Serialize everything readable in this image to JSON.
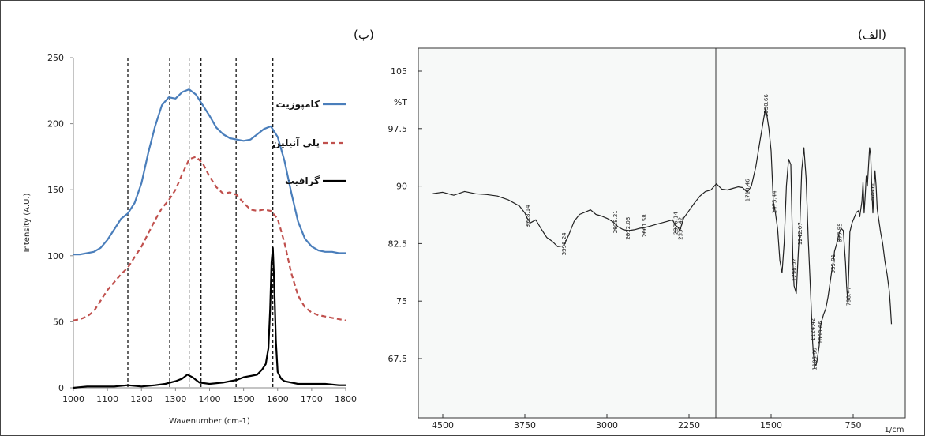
{
  "labels": {
    "panel_b": "(ب)",
    "panel_a": "(الف)"
  },
  "colors": {
    "composite": "#4a7ebb",
    "polyaniline": "#c0504d",
    "graphite": "#000000",
    "vlines": "#000000",
    "ftir": "#222222"
  },
  "chart_data": [
    {
      "id": "raman",
      "type": "line",
      "title": "",
      "xlabel": "Wavenumber (cm-1)",
      "ylabel": "Intensity (A.U.)",
      "xlim": [
        1000,
        1800
      ],
      "ylim": [
        0,
        250
      ],
      "xticks": [
        1000,
        1100,
        1200,
        1300,
        1400,
        1500,
        1600,
        1700,
        1800
      ],
      "yticks": [
        0,
        50,
        100,
        150,
        200,
        250
      ],
      "grid": false,
      "legend_position": "top-right",
      "reference_lines_x": [
        1160,
        1283,
        1340,
        1375,
        1478,
        1586
      ],
      "series": [
        {
          "name": "کامپوزیت",
          "style": "solid",
          "color": "#4a7ebb",
          "x": [
            1000,
            1020,
            1040,
            1060,
            1080,
            1100,
            1120,
            1140,
            1160,
            1180,
            1200,
            1220,
            1240,
            1260,
            1280,
            1300,
            1320,
            1340,
            1360,
            1380,
            1400,
            1420,
            1440,
            1460,
            1480,
            1500,
            1520,
            1540,
            1560,
            1580,
            1600,
            1620,
            1640,
            1660,
            1680,
            1700,
            1720,
            1740,
            1760,
            1780,
            1800
          ],
          "y": [
            101,
            101,
            102,
            103,
            106,
            112,
            120,
            128,
            132,
            140,
            155,
            178,
            198,
            214,
            220,
            219,
            224,
            226,
            222,
            214,
            206,
            197,
            192,
            189,
            188,
            187,
            188,
            192,
            196,
            198,
            190,
            172,
            148,
            126,
            113,
            107,
            104,
            103,
            103,
            102,
            102
          ]
        },
        {
          "name": "پلی آنیلین",
          "style": "dashed",
          "color": "#c0504d",
          "x": [
            1000,
            1020,
            1040,
            1060,
            1080,
            1100,
            1120,
            1140,
            1160,
            1180,
            1200,
            1220,
            1240,
            1260,
            1280,
            1300,
            1320,
            1340,
            1360,
            1380,
            1400,
            1420,
            1440,
            1460,
            1480,
            1500,
            1520,
            1540,
            1560,
            1580,
            1600,
            1620,
            1640,
            1660,
            1680,
            1700,
            1720,
            1740,
            1760,
            1780,
            1800
          ],
          "y": [
            51,
            52,
            54,
            58,
            66,
            74,
            80,
            86,
            91,
            99,
            107,
            117,
            127,
            136,
            142,
            150,
            162,
            173,
            175,
            170,
            160,
            152,
            147,
            148,
            146,
            140,
            135,
            134,
            135,
            134,
            128,
            110,
            87,
            70,
            61,
            57,
            55,
            54,
            53,
            52,
            51
          ]
        },
        {
          "name": "گرافیت",
          "style": "solid",
          "color": "#000000",
          "x": [
            1000,
            1040,
            1080,
            1120,
            1160,
            1200,
            1240,
            1270,
            1300,
            1320,
            1335,
            1350,
            1370,
            1400,
            1440,
            1480,
            1500,
            1520,
            1540,
            1555,
            1565,
            1573,
            1578,
            1582,
            1586,
            1590,
            1595,
            1600,
            1610,
            1620,
            1640,
            1660,
            1700,
            1740,
            1780,
            1800
          ],
          "y": [
            0,
            1,
            1,
            1,
            2,
            1,
            2,
            3,
            5,
            7,
            10,
            8,
            4,
            3,
            4,
            6,
            8,
            9,
            10,
            14,
            18,
            30,
            60,
            95,
            106,
            80,
            35,
            12,
            7,
            5,
            4,
            3,
            3,
            3,
            2,
            2
          ]
        }
      ]
    },
    {
      "id": "ftir",
      "type": "line",
      "title": "",
      "xlabel": "1/cm",
      "ylabel": "%T",
      "xlim": [
        4600,
        400
      ],
      "ylim": [
        62,
        107
      ],
      "xticks": [
        4500,
        3750,
        3000,
        2250,
        1500,
        750
      ],
      "yticks": [
        105,
        97.5,
        90,
        82.5,
        75,
        67.5
      ],
      "grid": false,
      "annotations": [
        {
          "x": 3728.14,
          "label": "3728.14"
        },
        {
          "x": 3396.24,
          "label": "3396.24"
        },
        {
          "x": 2928.21,
          "label": "2928.21"
        },
        {
          "x": 2812.03,
          "label": "2812.03"
        },
        {
          "x": 2661.58,
          "label": "2661.58"
        },
        {
          "x": 2376.14,
          "label": "2376.14"
        },
        {
          "x": 2334.42,
          "label": "2334.42"
        },
        {
          "x": 1718.46,
          "label": "1718.46"
        },
        {
          "x": 1550.66,
          "label": "1550.66"
        },
        {
          "x": 1475.44,
          "label": "1475.44"
        },
        {
          "x": 1296.02,
          "label": "1296.02"
        },
        {
          "x": 1242.07,
          "label": "1242.07"
        },
        {
          "x": 1124.42,
          "label": "1124.42"
        },
        {
          "x": 1105.99,
          "label": "1105.99"
        },
        {
          "x": 1053.66,
          "label": "1053.66"
        },
        {
          "x": 935.91,
          "label": "935.91"
        },
        {
          "x": 877.55,
          "label": "877.55"
        },
        {
          "x": 798.47,
          "label": "798.47"
        },
        {
          "x": 578.6,
          "label": "578.60"
        }
      ],
      "series": [
        {
          "name": "",
          "x": [
            4600,
            4500,
            4400,
            4300,
            4200,
            4100,
            4000,
            3900,
            3800,
            3750,
            3728,
            3700,
            3650,
            3600,
            3550,
            3500,
            3450,
            3396,
            3350,
            3300,
            3250,
            3200,
            3150,
            3100,
            3050,
            3000,
            2950,
            2900,
            2850,
            2800,
            2750,
            2700,
            2650,
            2600,
            2550,
            2500,
            2450,
            2400,
            2376,
            2350,
            2334,
            2300,
            2250,
            2200,
            2150,
            2100,
            2050,
            2000,
            1950,
            1900,
            1850,
            1800,
            1760,
            1718,
            1680,
            1640,
            1600,
            1570,
            1550,
            1520,
            1500,
            1480,
            1460,
            1440,
            1420,
            1400,
            1380,
            1360,
            1340,
            1320,
            1300,
            1290,
            1270,
            1250,
            1240,
            1220,
            1200,
            1180,
            1160,
            1140,
            1130,
            1120,
            1110,
            1100,
            1090,
            1080,
            1060,
            1050,
            1040,
            1020,
            1000,
            980,
            960,
            940,
            930,
            920,
            900,
            880,
            860,
            840,
            820,
            810,
            800,
            790,
            780,
            760,
            740,
            720,
            700,
            690,
            680,
            670,
            660,
            650,
            640,
            630,
            620,
            610,
            600,
            590,
            580,
            570,
            560,
            550,
            540,
            530,
            520,
            500,
            480,
            460,
            440,
            420,
            410,
            400
          ],
          "y": [
            89,
            89.2,
            88.8,
            89.3,
            89,
            88.9,
            88.7,
            88.2,
            87.4,
            86.5,
            85.8,
            85.2,
            85.6,
            84.4,
            83.3,
            82.8,
            82.1,
            82.2,
            83.6,
            85.4,
            86.3,
            86.6,
            86.9,
            86.3,
            86.1,
            85.8,
            85.4,
            84.7,
            84.3,
            84.2,
            84.3,
            84.5,
            84.6,
            84.8,
            85,
            85.2,
            85.4,
            85.6,
            84.9,
            84.6,
            84.2,
            85.8,
            86.8,
            87.8,
            88.7,
            89.3,
            89.5,
            90.3,
            89.6,
            89.5,
            89.7,
            89.9,
            89.8,
            89.2,
            90,
            92.5,
            96,
            98.6,
            100.3,
            97.5,
            94.6,
            88,
            86.5,
            84.4,
            80.3,
            78.7,
            82.6,
            90,
            93.5,
            92.8,
            80,
            77,
            76,
            81.8,
            84,
            92,
            95,
            91,
            83,
            76.5,
            73,
            69.5,
            67.5,
            66.8,
            66.6,
            67.2,
            69.2,
            71.5,
            72.3,
            73.3,
            74,
            75.5,
            77.5,
            79.5,
            80.3,
            81.5,
            82.5,
            83.8,
            84.5,
            84.2,
            80,
            77,
            75,
            79,
            84,
            85.2,
            85.9,
            86.6,
            86.8,
            86,
            87,
            88,
            90.5,
            86.5,
            88.8,
            91.3,
            90,
            92.5,
            95,
            94,
            89.8,
            86.5,
            89.4,
            92,
            90,
            87,
            86,
            84,
            82.5,
            80.2,
            78.5,
            76.3,
            74.4,
            72
          ]
        }
      ]
    }
  ]
}
